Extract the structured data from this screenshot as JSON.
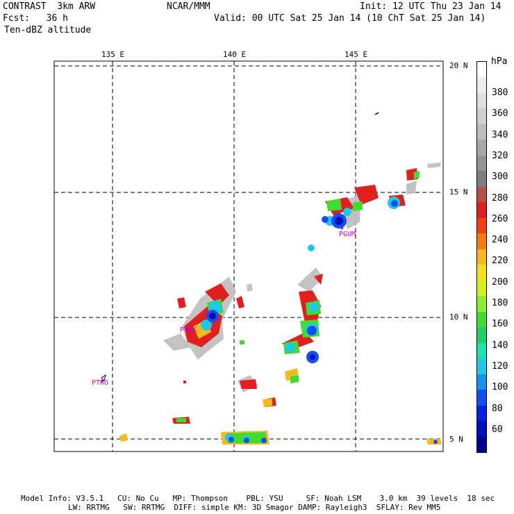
{
  "header": {
    "model": "CONTRAST  3km ARW",
    "org": "NCAR/MMM",
    "init": "Init: 12 UTC Thu 23 Jan 14",
    "fcst": "Fcst:   36 h",
    "valid": "Valid: 00 UTC Sat 25 Jan 14 (10 ChT Sat 25 Jan 14)",
    "field": "Ten-dBZ altitude"
  },
  "map": {
    "lon_labels": [
      "135 E",
      "140 E",
      "145 E"
    ],
    "lat_labels": [
      "20 N",
      "15 N",
      "10 N",
      "5 N"
    ],
    "stations": [
      "PGUM",
      "PTKK",
      "PTRO"
    ],
    "grid_style": "dashed"
  },
  "colorbar": {
    "unit": "hPa",
    "labels": [
      "380",
      "360",
      "340",
      "320",
      "300",
      "280",
      "260",
      "240",
      "220",
      "200",
      "180",
      "160",
      "140",
      "120",
      "100",
      "80",
      "60"
    ],
    "colors": [
      "#ffffff",
      "#ececec",
      "#dedede",
      "#cfcfcf",
      "#bdbdbd",
      "#a8a8a8",
      "#949494",
      "#7e7e7e",
      "#b8504a",
      "#e02020",
      "#f04010",
      "#f57a10",
      "#f8b820",
      "#f0e020",
      "#d0f020",
      "#90ec30",
      "#40dc30",
      "#20d060",
      "#20e0b0",
      "#20c8e8",
      "#1890f0",
      "#1050f0",
      "#0820e0",
      "#0010b8",
      "#000090"
    ]
  },
  "footer": {
    "line1": "Model Info: V3.5.1   CU: No Cu   MP: Thompson    PBL: YSU     SF: Noah LSM    3.0 km  39 levels  18 sec",
    "line2": "LW: RRTMG   SW: RRTMG  DIFF: simple KM: 3D Smagor DAMP: Rayleigh3  SFLAY: Rev MM5"
  }
}
